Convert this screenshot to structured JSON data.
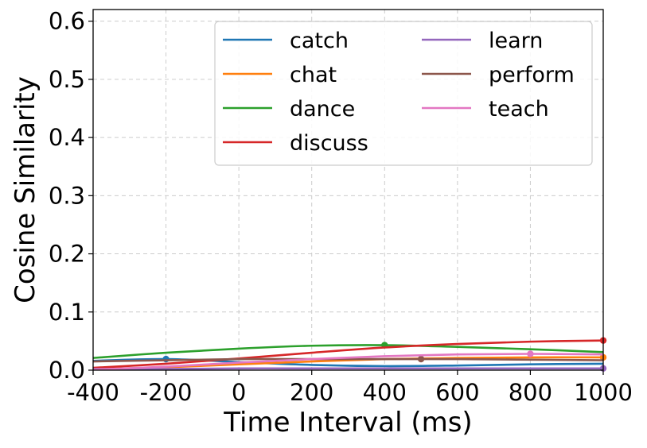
{
  "chart_data": {
    "type": "line",
    "title": "",
    "xlabel": "Time Interval (ms)",
    "ylabel": "Cosine Similarity",
    "xlim": [
      -400,
      1000
    ],
    "ylim": [
      0.0,
      0.62
    ],
    "xticks": [
      -400,
      -200,
      0,
      200,
      400,
      600,
      800,
      1000
    ],
    "xtick_labels": [
      "-400",
      "-200",
      "0",
      "200",
      "400",
      "600",
      "800",
      "1000"
    ],
    "yticks": [
      0.0,
      0.1,
      0.2,
      0.3,
      0.4,
      0.5,
      0.6
    ],
    "ytick_labels": [
      "0.0",
      "0.1",
      "0.2",
      "0.3",
      "0.4",
      "0.5",
      "0.6"
    ],
    "grid": true,
    "legend_position": "top-right",
    "legend_columns": 2,
    "series": [
      {
        "name": "catch",
        "color": "#1f77b4",
        "x": [
          -400,
          -200,
          0,
          200,
          400,
          600,
          800,
          1000
        ],
        "y": [
          0.016,
          0.019,
          0.014,
          0.009,
          0.007,
          0.008,
          0.01,
          0.011
        ],
        "marker": {
          "x": -200,
          "y": 0.019
        }
      },
      {
        "name": "chat",
        "color": "#ff7f0e",
        "x": [
          -400,
          -200,
          0,
          200,
          400,
          600,
          800,
          1000
        ],
        "y": [
          0.002,
          0.005,
          0.01,
          0.015,
          0.019,
          0.021,
          0.022,
          0.022
        ],
        "marker": {
          "x": 1000,
          "y": 0.022
        }
      },
      {
        "name": "dance",
        "color": "#2ca02c",
        "x": [
          -400,
          -200,
          0,
          200,
          400,
          600,
          800,
          1000
        ],
        "y": [
          0.021,
          0.03,
          0.037,
          0.042,
          0.043,
          0.04,
          0.036,
          0.031
        ],
        "marker": {
          "x": 400,
          "y": 0.043
        }
      },
      {
        "name": "discuss",
        "color": "#d62728",
        "x": [
          -400,
          -200,
          0,
          200,
          400,
          600,
          800,
          1000
        ],
        "y": [
          0.004,
          0.011,
          0.02,
          0.03,
          0.039,
          0.045,
          0.049,
          0.051
        ],
        "marker": {
          "x": 1000,
          "y": 0.051
        }
      },
      {
        "name": "learn",
        "color": "#9467bd",
        "x": [
          -400,
          -200,
          0,
          200,
          400,
          600,
          800,
          1000
        ],
        "y": [
          0.002,
          0.002,
          0.003,
          0.003,
          0.003,
          0.003,
          0.003,
          0.003
        ],
        "marker": {
          "x": 1000,
          "y": 0.003
        }
      },
      {
        "name": "perform",
        "color": "#8c564b",
        "x": [
          -400,
          -200,
          0,
          200,
          400,
          600,
          800,
          1000
        ],
        "y": [
          0.015,
          0.017,
          0.019,
          0.019,
          0.019,
          0.019,
          0.018,
          0.017
        ],
        "marker": {
          "x": 500,
          "y": 0.019
        }
      },
      {
        "name": "teach",
        "color": "#e377c2",
        "x": [
          -400,
          -200,
          0,
          200,
          400,
          600,
          800,
          1000
        ],
        "y": [
          0.001,
          0.006,
          0.013,
          0.019,
          0.024,
          0.027,
          0.028,
          0.027
        ],
        "marker": {
          "x": 800,
          "y": 0.028
        }
      }
    ]
  }
}
